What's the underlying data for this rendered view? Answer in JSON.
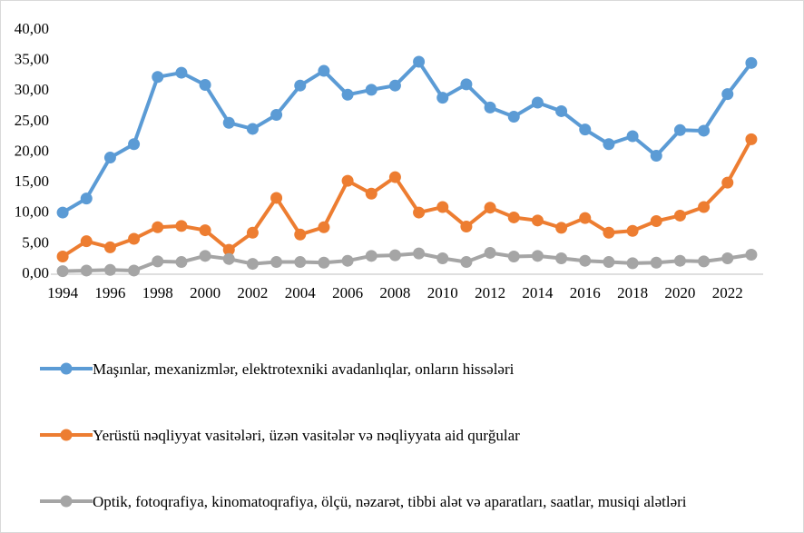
{
  "chart_data": {
    "type": "line",
    "categories": [
      1994,
      null,
      1996,
      null,
      1998,
      null,
      2000,
      null,
      2002,
      null,
      2004,
      null,
      2006,
      null,
      2008,
      null,
      2010,
      null,
      2012,
      null,
      2014,
      null,
      2016,
      null,
      2018,
      null,
      2020,
      null,
      2022,
      null
    ],
    "series": [
      {
        "name": "Maşınlar, mexanizmlər, elektrotexniki avadanlıqlar, onların hissələri",
        "color": "#5b9bd5",
        "values": [
          10.1,
          12.4,
          19.1,
          21.3,
          32.3,
          33.0,
          31.0,
          24.8,
          23.8,
          26.1,
          30.9,
          33.3,
          29.4,
          30.2,
          30.9,
          34.8,
          28.9,
          31.1,
          27.3,
          25.8,
          28.1,
          26.7,
          23.7,
          21.3,
          22.6,
          19.4,
          23.6,
          23.5,
          29.5,
          34.6
        ]
      },
      {
        "name": "Yerüstü nəqliyyat vasitələri, üzən vasitələr və nəqliyyata aid qurğular",
        "color": "#ed7d31",
        "values": [
          2.9,
          5.4,
          4.4,
          5.8,
          7.7,
          7.9,
          7.2,
          4.0,
          6.8,
          12.5,
          6.5,
          7.7,
          15.3,
          13.2,
          15.9,
          10.1,
          11.0,
          7.8,
          10.9,
          9.3,
          8.8,
          7.6,
          9.2,
          6.8,
          7.1,
          8.7,
          9.6,
          11.0,
          15.0,
          22.1
        ]
      },
      {
        "name": "Optik, fotoqrafiya, kinomatoqrafiya, ölçü, nəzarət, tibbi alət və aparatları, saatlar, musiqi alətləri",
        "color": "#a5a5a5",
        "values": [
          0.5,
          0.6,
          0.7,
          0.6,
          2.1,
          2.0,
          3.0,
          2.5,
          1.7,
          2.0,
          2.0,
          1.9,
          2.2,
          3.0,
          3.1,
          3.4,
          2.6,
          2.0,
          3.5,
          2.9,
          3.0,
          2.6,
          2.2,
          2.0,
          1.8,
          1.9,
          2.2,
          2.1,
          2.6,
          3.2
        ]
      }
    ],
    "ylim": [
      0,
      40
    ],
    "yticks": [
      {
        "value": 0,
        "label": "0,00"
      },
      {
        "value": 5,
        "label": "5,00"
      },
      {
        "value": 10,
        "label": "10,00"
      },
      {
        "value": 15,
        "label": "15,00"
      },
      {
        "value": 20,
        "label": "20,00"
      },
      {
        "value": 25,
        "label": "25,00"
      },
      {
        "value": 30,
        "label": "30,00"
      },
      {
        "value": 35,
        "label": "35,00"
      },
      {
        "value": 40,
        "label": "40,00"
      }
    ],
    "grid": false,
    "legend": "bottom"
  }
}
